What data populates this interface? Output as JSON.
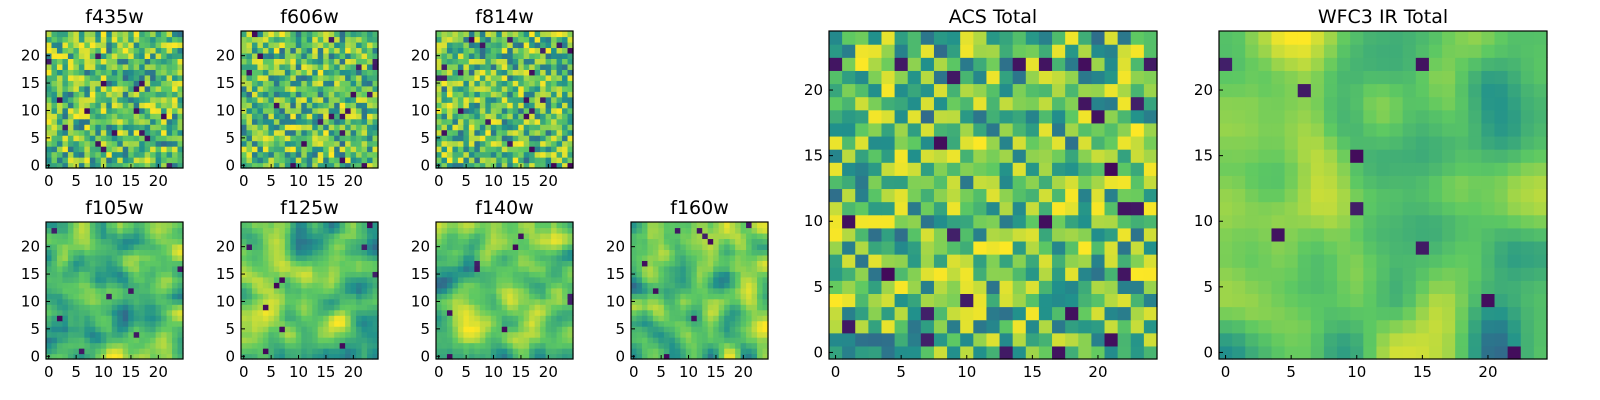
{
  "chart_data": [
    {
      "type": "heatmap",
      "title": "f435w",
      "grid_size": 25,
      "xlim": [
        0,
        25
      ],
      "ylim": [
        0,
        25
      ],
      "x_ticks": [
        0,
        5,
        10,
        15,
        20
      ],
      "y_ticks": [
        0,
        5,
        10,
        15,
        20
      ],
      "colormap": "viridis",
      "texture": "pixel-noise",
      "seed": 11
    },
    {
      "type": "heatmap",
      "title": "f606w",
      "grid_size": 25,
      "xlim": [
        0,
        25
      ],
      "ylim": [
        0,
        25
      ],
      "x_ticks": [
        0,
        5,
        10,
        15,
        20
      ],
      "y_ticks": [
        0,
        5,
        10,
        15,
        20
      ],
      "colormap": "viridis",
      "texture": "pixel-noise",
      "seed": 23
    },
    {
      "type": "heatmap",
      "title": "f814w",
      "grid_size": 25,
      "xlim": [
        0,
        25
      ],
      "ylim": [
        0,
        25
      ],
      "x_ticks": [
        0,
        5,
        10,
        15,
        20
      ],
      "y_ticks": [
        0,
        5,
        10,
        15,
        20
      ],
      "colormap": "viridis",
      "texture": "pixel-noise",
      "seed": 37
    },
    {
      "type": "heatmap",
      "title": "f105w",
      "grid_size": 25,
      "xlim": [
        0,
        25
      ],
      "ylim": [
        0,
        25
      ],
      "x_ticks": [
        0,
        5,
        10,
        15,
        20
      ],
      "y_ticks": [
        0,
        5,
        10,
        15,
        20
      ],
      "colormap": "viridis",
      "texture": "smooth",
      "seed": 41
    },
    {
      "type": "heatmap",
      "title": "f125w",
      "grid_size": 25,
      "xlim": [
        0,
        25
      ],
      "ylim": [
        0,
        25
      ],
      "x_ticks": [
        0,
        5,
        10,
        15,
        20
      ],
      "y_ticks": [
        0,
        5,
        10,
        15,
        20
      ],
      "colormap": "viridis",
      "texture": "smooth",
      "seed": 53
    },
    {
      "type": "heatmap",
      "title": "f140w",
      "grid_size": 25,
      "xlim": [
        0,
        25
      ],
      "ylim": [
        0,
        25
      ],
      "x_ticks": [
        0,
        5,
        10,
        15,
        20
      ],
      "y_ticks": [
        0,
        5,
        10,
        15,
        20
      ],
      "colormap": "viridis",
      "texture": "smooth",
      "seed": 67
    },
    {
      "type": "heatmap",
      "title": "f160w",
      "grid_size": 25,
      "xlim": [
        0,
        25
      ],
      "ylim": [
        0,
        25
      ],
      "x_ticks": [
        0,
        5,
        10,
        15,
        20
      ],
      "y_ticks": [
        0,
        5,
        10,
        15,
        20
      ],
      "colormap": "viridis",
      "texture": "smooth",
      "seed": 79
    },
    {
      "type": "heatmap",
      "title": "ACS Total",
      "grid_size": 25,
      "xlim": [
        0,
        25
      ],
      "ylim": [
        0,
        25
      ],
      "x_ticks": [
        0,
        5,
        10,
        15,
        20
      ],
      "y_ticks": [
        0,
        5,
        10,
        15,
        20
      ],
      "colormap": "viridis",
      "texture": "blocky",
      "seed": 97
    },
    {
      "type": "heatmap",
      "title": "WFC3 IR Total",
      "grid_size": 25,
      "xlim": [
        0,
        25
      ],
      "ylim": [
        0,
        25
      ],
      "x_ticks": [
        0,
        5,
        10,
        15,
        20
      ],
      "y_ticks": [
        0,
        5,
        10,
        15,
        20
      ],
      "colormap": "viridis",
      "texture": "smooth-blocky",
      "seed": 131
    }
  ],
  "colors": {
    "viridis_stops": [
      "#440154",
      "#3b528b",
      "#21918c",
      "#5ec962",
      "#fde725"
    ],
    "frame": "#000000",
    "background": "#ffffff"
  }
}
